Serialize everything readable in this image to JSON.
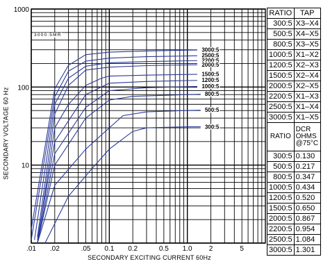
{
  "chart_data": {
    "type": "line",
    "xscale": "log",
    "yscale": "log",
    "xlim": [
      0.01,
      10
    ],
    "ylim": [
      1,
      1000
    ],
    "xlabel": "SECONDARY EXCITING CURRENT 60Hz",
    "ylabel": "SECONDARY VOLTAGE 60 Hz",
    "x_tick_labels": [
      {
        "value": 0.01,
        "label": ".01"
      },
      {
        "value": 0.02,
        "label": ".02"
      },
      {
        "value": 0.05,
        "label": ".05"
      },
      {
        "value": 0.1,
        "label": "0.1"
      },
      {
        "value": 0.2,
        "label": "0.2"
      },
      {
        "value": 0.5,
        "label": "0.5"
      },
      {
        "value": 1,
        "label": "1.0"
      },
      {
        "value": 2,
        "label": "2"
      },
      {
        "value": 5,
        "label": "5"
      }
    ],
    "y_tick_labels": [
      {
        "value": 1000,
        "label": "1000"
      },
      {
        "value": 100,
        "label": "100"
      },
      {
        "value": 10,
        "label": "10"
      }
    ],
    "grid": true,
    "model_label": "3000:5MR",
    "series": [
      {
        "name": "3000:5",
        "x": [
          0.009,
          0.02,
          0.03,
          0.05,
          0.1,
          0.3,
          1,
          2.6
        ],
        "y": [
          1.5,
          95,
          190,
          260,
          280,
          290,
          297,
          300
        ]
      },
      {
        "name": "2500:5",
        "x": [
          0.009,
          0.02,
          0.03,
          0.05,
          0.1,
          0.3,
          1,
          2.6
        ],
        "y": [
          1.1,
          75,
          160,
          215,
          235,
          245,
          250,
          255
        ]
      },
      {
        "name": "2200:5",
        "x": [
          0.011,
          0.02,
          0.03,
          0.05,
          0.1,
          0.3,
          1,
          2.6
        ],
        "y": [
          1.1,
          60,
          130,
          185,
          205,
          212,
          217,
          220
        ]
      },
      {
        "name": "2000:5",
        "x": [
          0.012,
          0.02,
          0.03,
          0.05,
          0.1,
          0.3,
          1,
          2.6
        ],
        "y": [
          1.2,
          45,
          105,
          165,
          180,
          188,
          192,
          195
        ]
      },
      {
        "name": "1500:5",
        "x": [
          0.012,
          0.02,
          0.03,
          0.05,
          0.08,
          0.1,
          0.3,
          1,
          2.6
        ],
        "y": [
          1.0,
          30,
          60,
          105,
          130,
          138,
          142,
          145,
          147
        ]
      },
      {
        "name": "1200:5",
        "x": [
          0.012,
          0.02,
          0.05,
          0.1,
          0.3,
          1,
          2.6
        ],
        "y": [
          1.1,
          20,
          80,
          112,
          118,
          121,
          123
        ]
      },
      {
        "name": "1000:5",
        "x": [
          0.012,
          0.02,
          0.05,
          0.1,
          0.3,
          1,
          2.6
        ],
        "y": [
          1.0,
          14,
          55,
          90,
          98,
          101,
          103
        ]
      },
      {
        "name": "800:5",
        "x": [
          0.012,
          0.02,
          0.05,
          0.1,
          0.2,
          1,
          2.6
        ],
        "y": [
          1.0,
          10,
          40,
          68,
          76,
          80,
          82
        ]
      },
      {
        "name": "500:5",
        "x": [
          0.012,
          0.02,
          0.05,
          0.1,
          0.15,
          0.3,
          1,
          2.6
        ],
        "y": [
          1.0,
          5.5,
          16,
          30,
          43,
          48,
          50,
          51
        ]
      },
      {
        "name": "300:5",
        "x": [
          0.015,
          0.03,
          0.06,
          0.1,
          0.2,
          0.3,
          1,
          2.6
        ],
        "y": [
          1.0,
          4,
          9,
          16,
          27,
          30,
          31,
          31
        ]
      }
    ]
  },
  "tap_table": {
    "headers": [
      "RATIO",
      "TAP"
    ],
    "rows": [
      {
        "ratio": "300:5",
        "tap": "X3–X4"
      },
      {
        "ratio": "500:5",
        "tap": "X4–X5"
      },
      {
        "ratio": "800:5",
        "tap": "X3–X5"
      },
      {
        "ratio": "1000:5",
        "tap": "X1–X2"
      },
      {
        "ratio": "1200:5",
        "tap": "X2–X3"
      },
      {
        "ratio": "1500:5",
        "tap": "X2–X4"
      },
      {
        "ratio": "2000:5",
        "tap": "X2–X5"
      },
      {
        "ratio": "2200:5",
        "tap": "X1–X3"
      },
      {
        "ratio": "2500:5",
        "tap": "X1–X4"
      },
      {
        "ratio": "3000:5",
        "tap": "X1–X5"
      }
    ]
  },
  "dcr_table": {
    "headers": {
      "ratio": "RATIO",
      "dcr_line1": "DCR",
      "dcr_line2": "OHMS",
      "dcr_line3": "@75°C"
    },
    "rows": [
      {
        "ratio": "300:5",
        "ohms": "0.130"
      },
      {
        "ratio": "500:5",
        "ohms": "0.217"
      },
      {
        "ratio": "800:5",
        "ohms": "0.347"
      },
      {
        "ratio": "1000:5",
        "ohms": "0.434"
      },
      {
        "ratio": "1200:5",
        "ohms": "0.520"
      },
      {
        "ratio": "1500:5",
        "ohms": "0.650"
      },
      {
        "ratio": "2000:5",
        "ohms": "0.867"
      },
      {
        "ratio": "2200:5",
        "ohms": "0.954"
      },
      {
        "ratio": "2500:5",
        "ohms": "1.084"
      },
      {
        "ratio": "3000:5",
        "ohms": "1.301"
      }
    ]
  },
  "colors": {
    "curve": "#2a3a9a",
    "grid": "#000000",
    "background": "#ffffff"
  }
}
